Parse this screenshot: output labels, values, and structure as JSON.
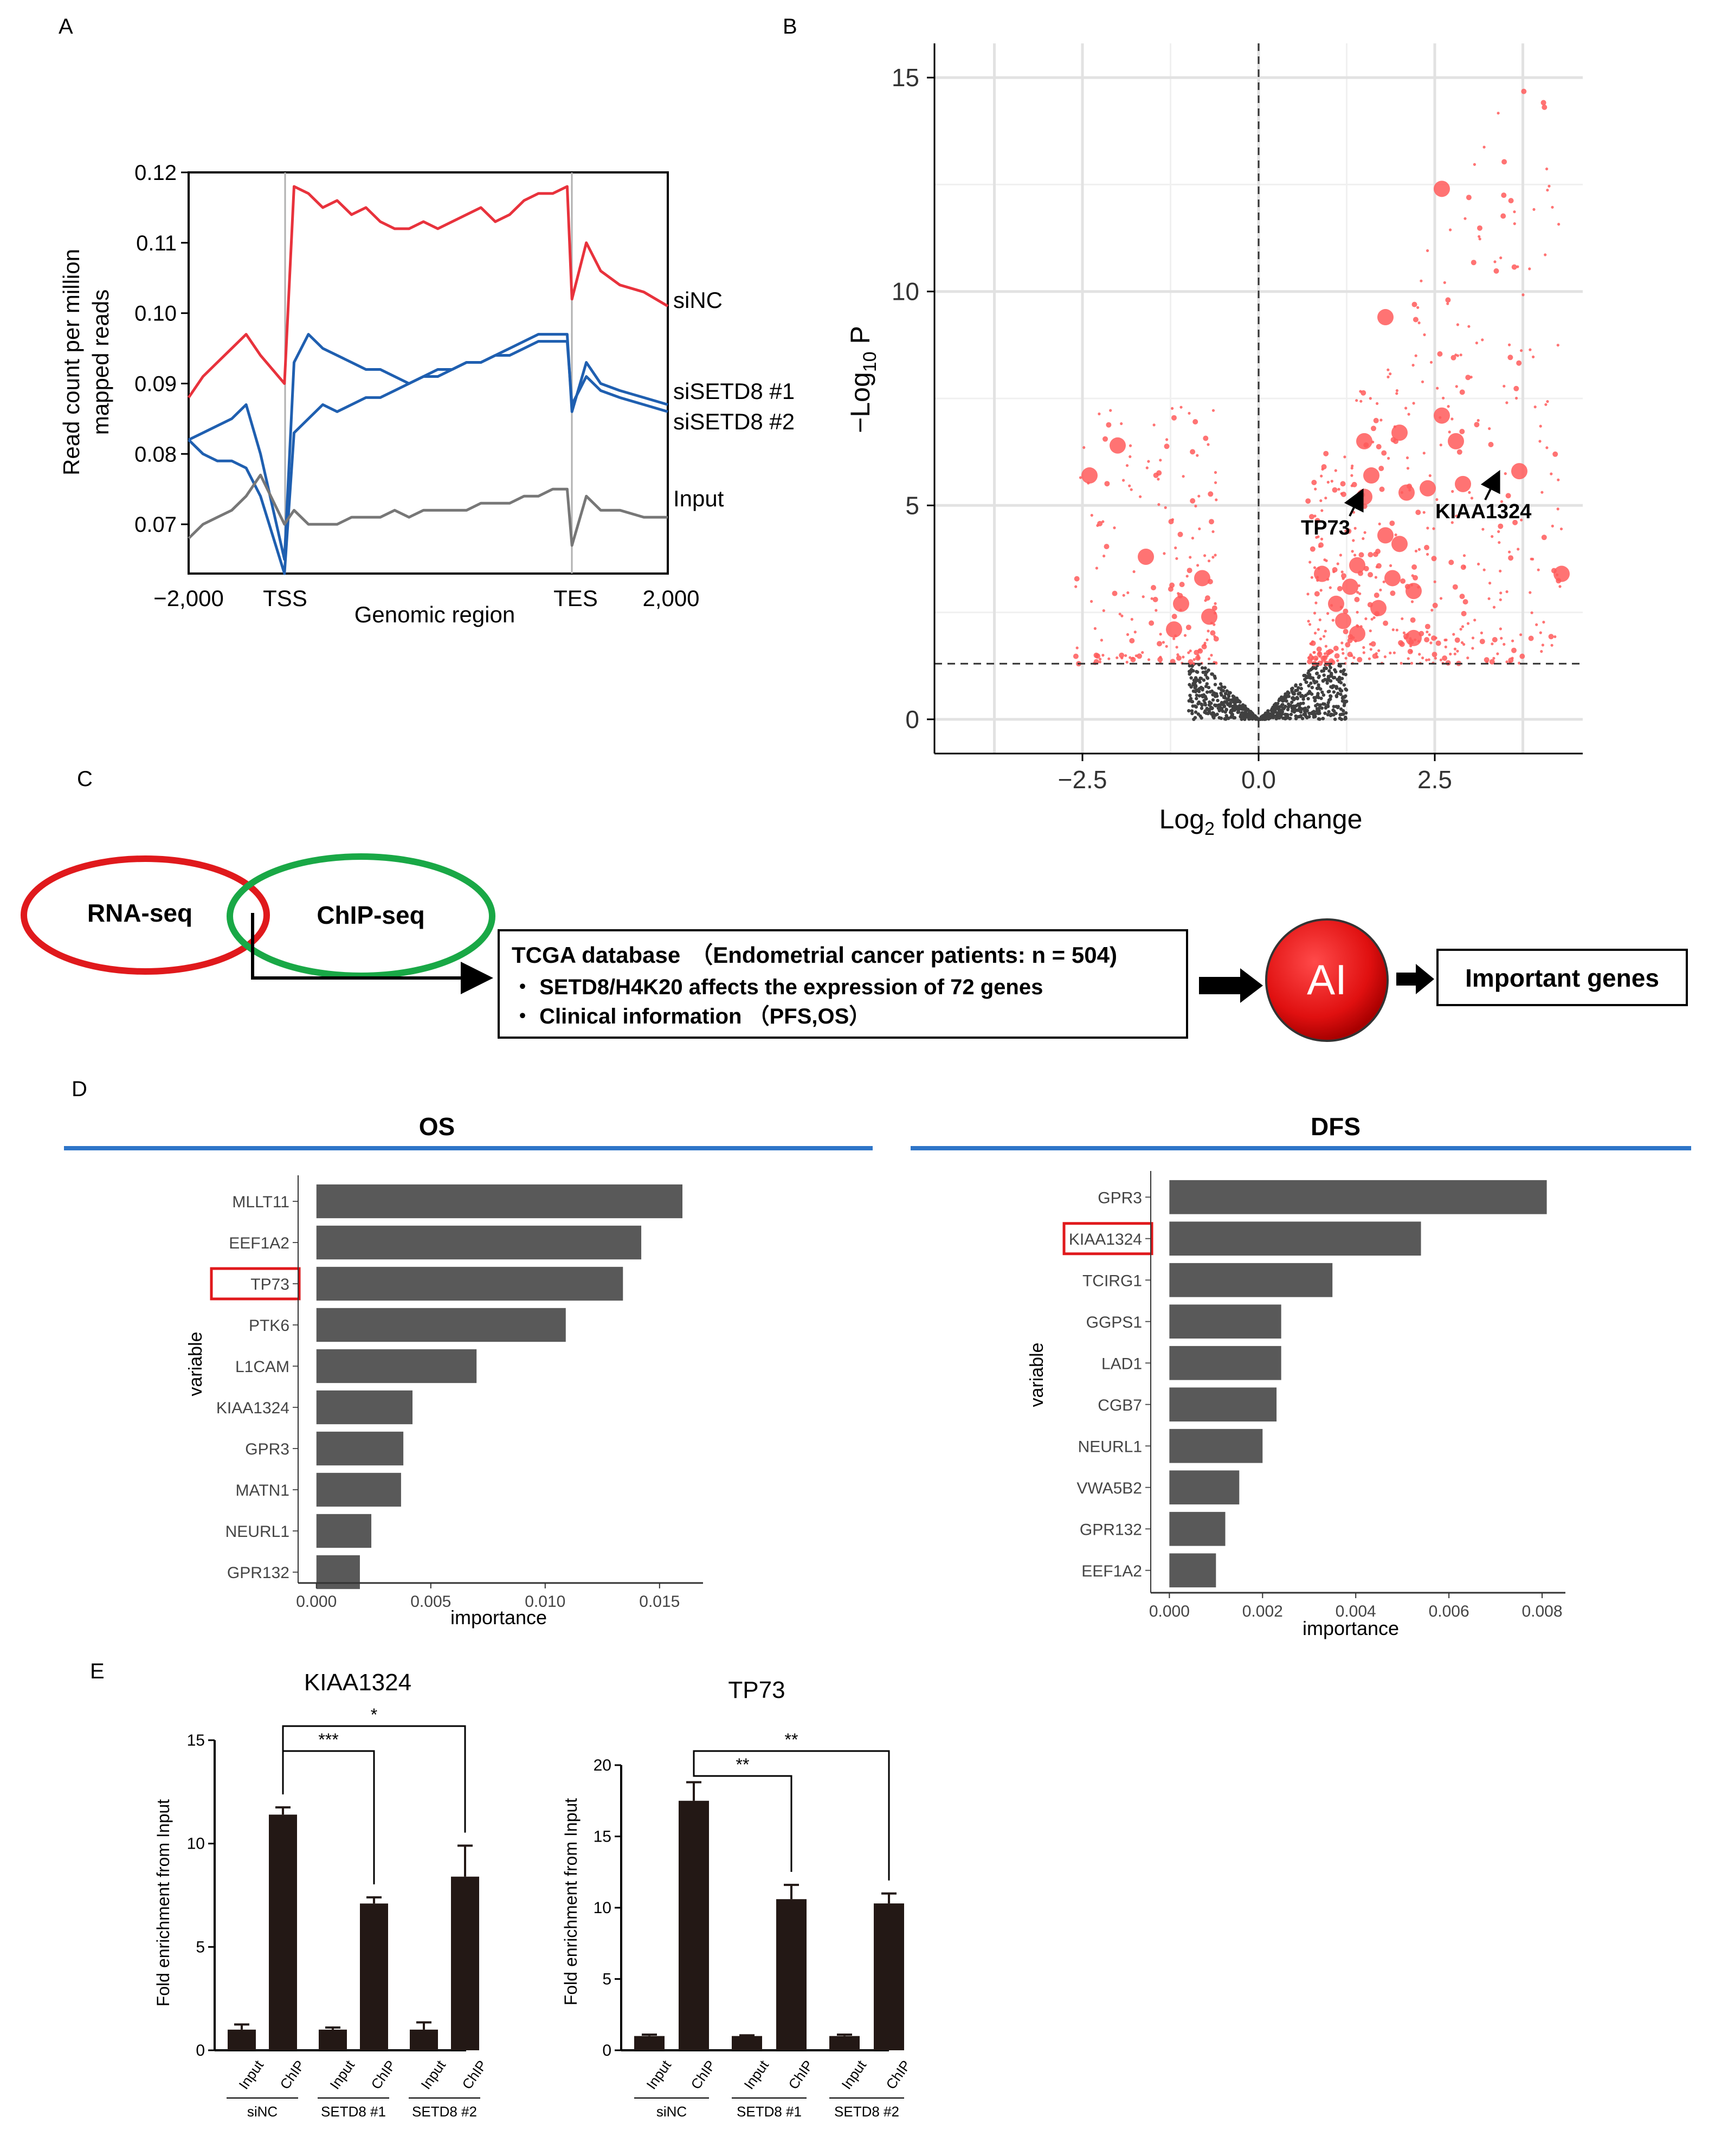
{
  "panel_labels": {
    "a": "A",
    "b": "B",
    "c": "C",
    "d": "D",
    "e": "E"
  },
  "chart_data": [
    {
      "panel": "A",
      "type": "line",
      "xlabel": "Genomic region",
      "ylabel_line1": "Read count per million",
      "ylabel_line2": "mapped reads",
      "x_tick_labels": [
        "−2,000",
        "TSS",
        "TES",
        "2,000"
      ],
      "ylim": [
        0.063,
        0.12
      ],
      "yticks": [
        0.07,
        0.08,
        0.09,
        0.1,
        0.11,
        0.12
      ],
      "ytick_labels": [
        "0.07",
        "0.08",
        "0.09",
        "0.10",
        "0.11",
        "0.12"
      ],
      "x": [
        0,
        3,
        6,
        9,
        12,
        15,
        20,
        22,
        25,
        28,
        31,
        34,
        37,
        40,
        43,
        46,
        49,
        52,
        55,
        58,
        61,
        64,
        67,
        70,
        73,
        76,
        79,
        80,
        83,
        86,
        90,
        95,
        100
      ],
      "series": [
        {
          "name": "siNC",
          "color": "#e8323c",
          "values": [
            0.088,
            0.091,
            0.093,
            0.095,
            0.097,
            0.094,
            0.09,
            0.118,
            0.117,
            0.115,
            0.116,
            0.114,
            0.115,
            0.113,
            0.112,
            0.112,
            0.113,
            0.112,
            0.113,
            0.114,
            0.115,
            0.113,
            0.114,
            0.116,
            0.117,
            0.117,
            0.118,
            0.102,
            0.11,
            0.106,
            0.104,
            0.103,
            0.101
          ]
        },
        {
          "name": "siSETD8 #1",
          "color": "#1f5fb0",
          "values": [
            0.082,
            0.083,
            0.084,
            0.085,
            0.087,
            0.08,
            0.065,
            0.093,
            0.097,
            0.095,
            0.094,
            0.093,
            0.092,
            0.092,
            0.091,
            0.09,
            0.091,
            0.091,
            0.092,
            0.093,
            0.093,
            0.094,
            0.095,
            0.096,
            0.097,
            0.097,
            0.097,
            0.086,
            0.093,
            0.09,
            0.089,
            0.088,
            0.087
          ]
        },
        {
          "name": "siSETD8 #2",
          "color": "#1f5fb0",
          "values": [
            0.082,
            0.08,
            0.079,
            0.079,
            0.078,
            0.074,
            0.063,
            0.083,
            0.085,
            0.087,
            0.086,
            0.087,
            0.088,
            0.088,
            0.089,
            0.09,
            0.091,
            0.092,
            0.092,
            0.093,
            0.093,
            0.094,
            0.094,
            0.095,
            0.096,
            0.096,
            0.096,
            0.087,
            0.091,
            0.089,
            0.088,
            0.087,
            0.086
          ]
        },
        {
          "name": "Input",
          "color": "#777777",
          "values": [
            0.068,
            0.07,
            0.071,
            0.072,
            0.074,
            0.077,
            0.07,
            0.072,
            0.07,
            0.07,
            0.07,
            0.071,
            0.071,
            0.071,
            0.072,
            0.071,
            0.072,
            0.072,
            0.072,
            0.072,
            0.073,
            0.073,
            0.073,
            0.074,
            0.074,
            0.075,
            0.075,
            0.067,
            0.074,
            0.072,
            0.072,
            0.071,
            0.071
          ]
        }
      ]
    },
    {
      "panel": "B",
      "type": "scatter",
      "xlabel_pre": "Log",
      "xlabel_sub": "2",
      "xlabel_post": " fold change",
      "ylabel_pre": "−Log",
      "ylabel_sub": "10",
      "ylabel_post": " P",
      "xlim": [
        -4.6,
        4.6
      ],
      "ylim": [
        -0.8,
        15.8
      ],
      "xticks": [
        -2.5,
        0.0,
        2.5
      ],
      "xtick_labels": [
        "−2.5",
        "0.0",
        "2.5"
      ],
      "yticks": [
        0,
        5,
        10,
        15
      ],
      "ytick_labels": [
        "0",
        "5",
        "10",
        "15"
      ],
      "threshold_p": 1.3,
      "significant_color": "#ff5a5a",
      "nonsignificant_color": "#404040",
      "highlighted": [
        [
          -2.4,
          5.7
        ],
        [
          -2.0,
          6.4
        ],
        [
          -1.6,
          3.8
        ],
        [
          -1.1,
          2.7
        ],
        [
          -1.2,
          2.1
        ],
        [
          -0.8,
          3.3
        ],
        [
          -0.7,
          2.4
        ],
        [
          0.9,
          3.4
        ],
        [
          1.1,
          2.7
        ],
        [
          1.2,
          2.3
        ],
        [
          1.3,
          3.1
        ],
        [
          1.4,
          2.0
        ],
        [
          1.4,
          3.6
        ],
        [
          1.5,
          5.2
        ],
        [
          1.5,
          6.5
        ],
        [
          1.6,
          5.7
        ],
        [
          1.7,
          2.6
        ],
        [
          1.8,
          9.4
        ],
        [
          1.8,
          4.3
        ],
        [
          1.9,
          3.3
        ],
        [
          2.0,
          4.1
        ],
        [
          2.0,
          6.7
        ],
        [
          2.1,
          5.3
        ],
        [
          2.2,
          3.0
        ],
        [
          2.2,
          1.9
        ],
        [
          2.4,
          5.4
        ],
        [
          2.6,
          12.4
        ],
        [
          2.6,
          7.1
        ],
        [
          2.8,
          6.5
        ],
        [
          2.9,
          5.5
        ],
        [
          3.7,
          5.8
        ],
        [
          4.3,
          3.4
        ]
      ],
      "annotations": [
        {
          "label": "TP73",
          "x": 1.5,
          "y": 5.3
        },
        {
          "label": "KIAA1324",
          "x": 3.7,
          "y": 5.8
        }
      ]
    },
    {
      "panel": "D-OS",
      "type": "bar",
      "title": "OS",
      "xlabel": "importance",
      "ylabel": "variable",
      "categories": [
        "MLLT11",
        "EEF1A2",
        "TP73",
        "PTK6",
        "L1CAM",
        "KIAA1324",
        "GPR3",
        "MATN1",
        "NEURL1",
        "GPR132"
      ],
      "values": [
        0.016,
        0.0142,
        0.0134,
        0.0109,
        0.007,
        0.0042,
        0.0038,
        0.0037,
        0.0024,
        0.0019
      ],
      "xlim": [
        -0.0008,
        0.0169
      ],
      "xticks": [
        0.0,
        0.005,
        0.01,
        0.015
      ],
      "xtick_labels": [
        "0.000",
        "0.005",
        "0.010",
        "0.015"
      ],
      "highlighted_category": "TP73",
      "bar_color": "#595959"
    },
    {
      "panel": "D-DFS",
      "type": "bar",
      "title": "DFS",
      "xlabel": "importance",
      "ylabel": "variable",
      "categories": [
        "GPR3",
        "KIAA1324",
        "TCIRG1",
        "GGPS1",
        "LAD1",
        "CGB7",
        "NEURL1",
        "VWA5B2",
        "GPR132",
        "EEF1A2"
      ],
      "values": [
        0.0081,
        0.0054,
        0.0035,
        0.0024,
        0.0024,
        0.0023,
        0.002,
        0.0015,
        0.0012,
        0.001
      ],
      "xlim": [
        -0.0004,
        0.0085
      ],
      "xticks": [
        0.0,
        0.002,
        0.004,
        0.006,
        0.008
      ],
      "xtick_labels": [
        "0.000",
        "0.002",
        "0.004",
        "0.006",
        "0.008"
      ],
      "highlighted_category": "KIAA1324",
      "bar_color": "#595959"
    },
    {
      "panel": "E-KIAA1324",
      "type": "bar",
      "title": "KIAA1324",
      "ylabel": "Fold enrichment from Input",
      "categories": [
        "Input",
        "ChIP",
        "Input",
        "ChIP",
        "Input",
        "ChIP"
      ],
      "groups": [
        "siNC",
        "SETD8 #1",
        "SETD8 #2"
      ],
      "values": [
        1.0,
        11.4,
        1.0,
        7.1,
        1.0,
        8.4
      ],
      "errors": [
        0.25,
        0.35,
        0.1,
        0.3,
        0.35,
        1.5
      ],
      "ylim": [
        0,
        15
      ],
      "yticks": [
        0,
        5,
        10,
        15
      ],
      "ytick_labels": [
        "0",
        "5",
        "10",
        "15"
      ],
      "significance": [
        {
          "label": "***",
          "to": "SETD8 #1"
        },
        {
          "label": "*",
          "to": "SETD8 #2"
        }
      ],
      "bar_color": "#231815"
    },
    {
      "panel": "E-TP73",
      "type": "bar",
      "title": "TP73",
      "ylabel": "Fold enrichment from Input",
      "categories": [
        "Input",
        "ChIP",
        "Input",
        "ChIP",
        "Input",
        "ChIP"
      ],
      "groups": [
        "siNC",
        "SETD8 #1",
        "SETD8 #2"
      ],
      "values": [
        1.0,
        17.5,
        1.0,
        10.6,
        1.0,
        10.3
      ],
      "errors": [
        0.1,
        1.3,
        0.05,
        1.0,
        0.1,
        0.7
      ],
      "ylim": [
        0,
        20
      ],
      "yticks": [
        0,
        5,
        10,
        15,
        20
      ],
      "ytick_labels": [
        "0",
        "5",
        "10",
        "15",
        "20"
      ],
      "significance": [
        {
          "label": "**",
          "to": "SETD8 #1"
        },
        {
          "label": "**",
          "to": "SETD8 #2"
        }
      ],
      "bar_color": "#231815"
    }
  ],
  "panel_c": {
    "rnaseq_label": "RNA-seq",
    "chipseq_label": "ChIP-seq",
    "tcga_line1_a": "TCGA database",
    "tcga_line1_b": "（Endometrial cancer patients: n = 504)",
    "tcga_line2": "・ SETD8/H4K20 affects the expression of 72 genes",
    "tcga_line3": "・ Clinical information （PFS,OS）",
    "ai_label": "AI",
    "important_genes": "Important genes",
    "red": "#e0191c",
    "green": "#19a846"
  }
}
